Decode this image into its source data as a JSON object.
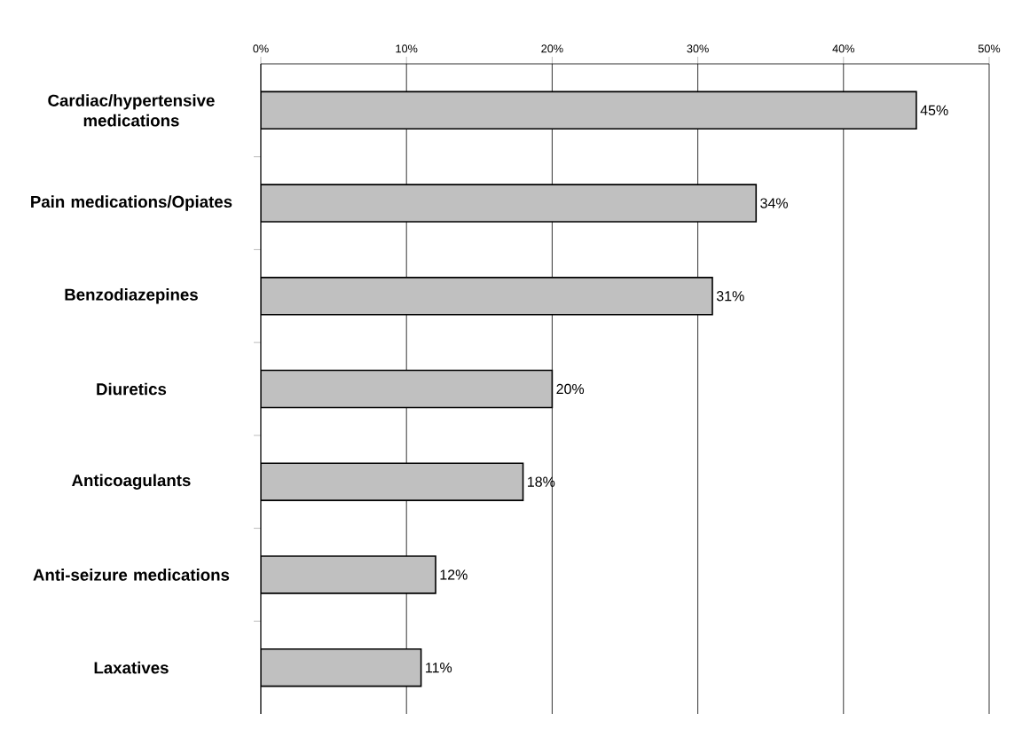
{
  "chart_data": {
    "type": "bar",
    "orientation": "horizontal",
    "categories": [
      "Cardiac/hypertensive medications",
      "Pain medications/Opiates",
      "Benzodiazepines",
      "Diuretics",
      "Anticoagulants",
      "Anti-seizure medications",
      "Laxatives"
    ],
    "values": [
      45,
      34,
      31,
      20,
      18,
      12,
      11
    ],
    "color": "#c0c0c0",
    "value_labels": [
      "45%",
      "34%",
      "31%",
      "20%",
      "18%",
      "12%",
      "11%"
    ],
    "xlim": [
      0,
      50
    ],
    "xticks": [
      {
        "value": 0,
        "label": "0%"
      },
      {
        "value": 10,
        "label": "10%"
      },
      {
        "value": 20,
        "label": "20%"
      },
      {
        "value": 30,
        "label": "30%"
      },
      {
        "value": 40,
        "label": "40%"
      },
      {
        "value": 50,
        "label": "50%"
      }
    ],
    "grid": "x"
  }
}
